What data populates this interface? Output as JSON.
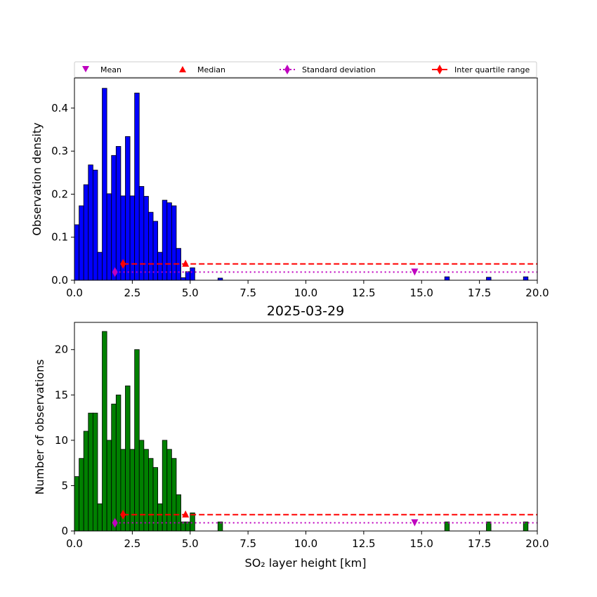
{
  "chart_data": [
    {
      "type": "bar",
      "panel": "top",
      "title": "",
      "xlabel": "",
      "ylabel": "Observation density",
      "xlim": [
        0,
        20
      ],
      "ylim": [
        0,
        0.47
      ],
      "xticks": [
        "0.0",
        "2.5",
        "5.0",
        "7.5",
        "10.0",
        "12.5",
        "15.0",
        "17.5",
        "20.0"
      ],
      "yticks": [
        "0.0",
        "0.1",
        "0.2",
        "0.3",
        "0.4"
      ],
      "bar_color": "#0000ff",
      "bin_width": 0.2,
      "bins": [
        {
          "x": 0.0,
          "value": 0.129
        },
        {
          "x": 0.2,
          "value": 0.173
        },
        {
          "x": 0.4,
          "value": 0.222
        },
        {
          "x": 0.6,
          "value": 0.268
        },
        {
          "x": 0.8,
          "value": 0.256
        },
        {
          "x": 1.0,
          "value": 0.065
        },
        {
          "x": 1.2,
          "value": 0.446
        },
        {
          "x": 1.4,
          "value": 0.201
        },
        {
          "x": 1.6,
          "value": 0.29
        },
        {
          "x": 1.8,
          "value": 0.311
        },
        {
          "x": 2.0,
          "value": 0.196
        },
        {
          "x": 2.2,
          "value": 0.334
        },
        {
          "x": 2.4,
          "value": 0.196
        },
        {
          "x": 2.6,
          "value": 0.435
        },
        {
          "x": 2.8,
          "value": 0.218
        },
        {
          "x": 3.0,
          "value": 0.195
        },
        {
          "x": 3.2,
          "value": 0.158
        },
        {
          "x": 3.4,
          "value": 0.137
        },
        {
          "x": 3.6,
          "value": 0.065
        },
        {
          "x": 3.8,
          "value": 0.186
        },
        {
          "x": 4.0,
          "value": 0.18
        },
        {
          "x": 4.2,
          "value": 0.173
        },
        {
          "x": 4.4,
          "value": 0.074
        },
        {
          "x": 4.6,
          "value": 0.006
        },
        {
          "x": 4.8,
          "value": 0.02
        },
        {
          "x": 5.0,
          "value": 0.029
        },
        {
          "x": 6.2,
          "value": 0.005
        },
        {
          "x": 16.0,
          "value": 0.008
        },
        {
          "x": 17.8,
          "value": 0.007
        },
        {
          "x": 19.4,
          "value": 0.008
        }
      ],
      "stats": {
        "mean": {
          "x": 14.7,
          "y": 0.019
        },
        "median": {
          "x": 4.8,
          "y": 0.038
        },
        "std_dev": {
          "x_from": 1.75,
          "x_to": 20,
          "y": 0.019
        },
        "iqr": {
          "x_from": 2.1,
          "x_to": 4.8,
          "extends_to": 20,
          "y": 0.038
        }
      }
    },
    {
      "type": "bar",
      "panel": "bottom",
      "title": "2025-03-29",
      "xlabel": "SO₂ layer height [km]",
      "ylabel": "Number of observations",
      "xlim": [
        0,
        20
      ],
      "ylim": [
        0,
        23
      ],
      "xticks": [
        "0.0",
        "2.5",
        "5.0",
        "7.5",
        "10.0",
        "12.5",
        "15.0",
        "17.5",
        "20.0"
      ],
      "yticks": [
        "0",
        "5",
        "10",
        "15",
        "20"
      ],
      "bar_color": "#008000",
      "bin_width": 0.2,
      "bins": [
        {
          "x": 0.0,
          "value": 6
        },
        {
          "x": 0.2,
          "value": 8
        },
        {
          "x": 0.4,
          "value": 11
        },
        {
          "x": 0.6,
          "value": 13
        },
        {
          "x": 0.8,
          "value": 13
        },
        {
          "x": 1.0,
          "value": 3
        },
        {
          "x": 1.2,
          "value": 22
        },
        {
          "x": 1.4,
          "value": 10
        },
        {
          "x": 1.6,
          "value": 14
        },
        {
          "x": 1.8,
          "value": 15
        },
        {
          "x": 2.0,
          "value": 9
        },
        {
          "x": 2.2,
          "value": 16
        },
        {
          "x": 2.4,
          "value": 9
        },
        {
          "x": 2.6,
          "value": 20
        },
        {
          "x": 2.8,
          "value": 10
        },
        {
          "x": 3.0,
          "value": 9
        },
        {
          "x": 3.2,
          "value": 8
        },
        {
          "x": 3.4,
          "value": 7
        },
        {
          "x": 3.6,
          "value": 3
        },
        {
          "x": 3.8,
          "value": 10
        },
        {
          "x": 4.0,
          "value": 9
        },
        {
          "x": 4.2,
          "value": 8
        },
        {
          "x": 4.4,
          "value": 4
        },
        {
          "x": 4.6,
          "value": 1
        },
        {
          "x": 4.8,
          "value": 1
        },
        {
          "x": 5.0,
          "value": 2
        },
        {
          "x": 6.2,
          "value": 1
        },
        {
          "x": 16.0,
          "value": 1
        },
        {
          "x": 17.8,
          "value": 1
        },
        {
          "x": 19.4,
          "value": 1
        }
      ],
      "stats": {
        "mean": {
          "x": 14.7,
          "y": 0.9
        },
        "median": {
          "x": 4.8,
          "y": 1.8
        },
        "std_dev": {
          "x_from": 1.75,
          "x_to": 20,
          "y": 0.9
        },
        "iqr": {
          "x_from": 2.1,
          "x_to": 4.8,
          "extends_to": 20,
          "y": 1.8
        }
      }
    }
  ],
  "legend": {
    "placement": "top",
    "items": [
      {
        "label": "Mean",
        "marker": "triangle-down",
        "color": "#bf00bf"
      },
      {
        "label": "Median",
        "marker": "triangle-up",
        "color": "#ff0000"
      },
      {
        "label": "Standard deviation",
        "marker": "diamond-dotted-line",
        "color": "#bf00bf"
      },
      {
        "label": "Inter quartile range",
        "marker": "diamond-solid-line",
        "color": "#ff0000"
      }
    ]
  }
}
